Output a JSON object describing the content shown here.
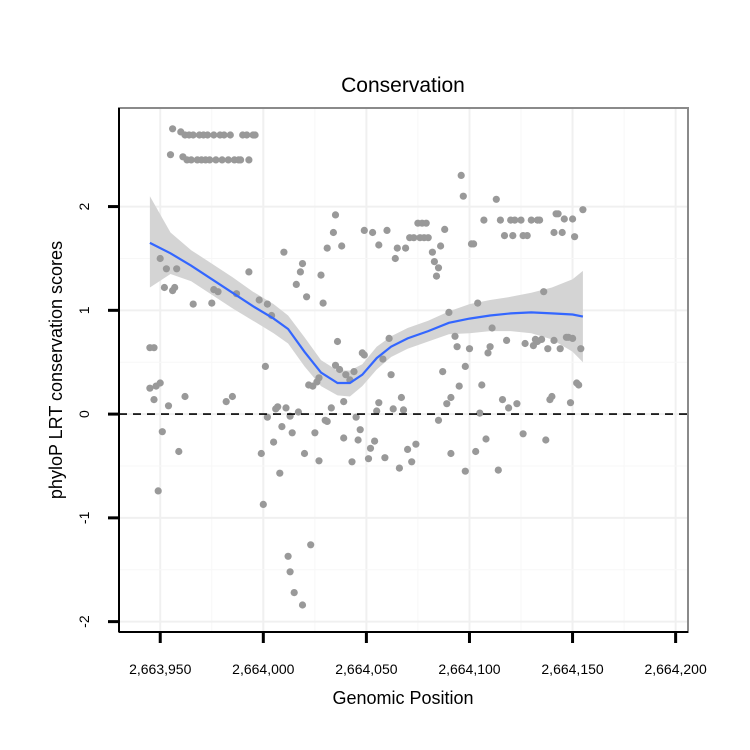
{
  "chart_data": {
    "type": "scatter",
    "title": "Conservation",
    "xlabel": "Genomic Position",
    "ylabel": "phyloP LRT conservation scores",
    "xlim": [
      2663930,
      2664206
    ],
    "ylim": [
      -2.1,
      2.95
    ],
    "x_ticks": [
      2663950,
      2664000,
      2664050,
      2664100,
      2664150,
      2664200
    ],
    "x_tick_labels": [
      "2,663,950",
      "2,664,000",
      "2,664,050",
      "2,664,100",
      "2,664,150",
      "2,664,200"
    ],
    "y_ticks": [
      -2,
      -1,
      0,
      1,
      2
    ],
    "y_tick_labels": [
      "-2",
      "-1",
      "0",
      "1",
      "2"
    ],
    "grid": true,
    "reference_line": {
      "y": 0,
      "style": "dashed"
    },
    "colors": {
      "points": "#999999",
      "smooth": "#3366ff",
      "band": "#d4d4d4",
      "panel_border": "#8a8a8a"
    },
    "points": [
      [
        2663945,
        0.64
      ],
      [
        2663947,
        0.64
      ],
      [
        2663945,
        0.25
      ],
      [
        2663947,
        0.14
      ],
      [
        2663948,
        0.27
      ],
      [
        2663950,
        0.3
      ],
      [
        2663949,
        -0.74
      ],
      [
        2663950,
        1.5
      ],
      [
        2663951,
        -0.17
      ],
      [
        2663952,
        1.22
      ],
      [
        2663953,
        1.4
      ],
      [
        2663954,
        0.08
      ],
      [
        2663955,
        2.5
      ],
      [
        2663956,
        2.75
      ],
      [
        2663956,
        1.19
      ],
      [
        2663957,
        1.22
      ],
      [
        2663958,
        1.4
      ],
      [
        2663959,
        -0.36
      ],
      [
        2663960,
        2.72
      ],
      [
        2663961,
        2.48
      ],
      [
        2663962,
        0.17
      ],
      [
        2663962,
        2.69
      ],
      [
        2663963,
        2.45
      ],
      [
        2663964,
        2.69
      ],
      [
        2663965,
        2.45
      ],
      [
        2663966,
        1.06
      ],
      [
        2663966,
        2.69
      ],
      [
        2663968,
        2.45
      ],
      [
        2663969,
        2.69
      ],
      [
        2663970,
        2.45
      ],
      [
        2663971,
        2.69
      ],
      [
        2663972,
        2.45
      ],
      [
        2663973,
        2.69
      ],
      [
        2663974,
        2.45
      ],
      [
        2663975,
        1.07
      ],
      [
        2663976,
        1.2
      ],
      [
        2663976,
        2.69
      ],
      [
        2663977,
        2.45
      ],
      [
        2663978,
        1.18
      ],
      [
        2663979,
        2.69
      ],
      [
        2663980,
        2.45
      ],
      [
        2663981,
        2.69
      ],
      [
        2663982,
        0.12
      ],
      [
        2663983,
        2.45
      ],
      [
        2663984,
        2.69
      ],
      [
        2663985,
        0.17
      ],
      [
        2663986,
        2.45
      ],
      [
        2663987,
        1.16
      ],
      [
        2663988,
        2.45
      ],
      [
        2663989,
        2.45
      ],
      [
        2663990,
        2.69
      ],
      [
        2663992,
        2.69
      ],
      [
        2663993,
        2.45
      ],
      [
        2663995,
        2.69
      ],
      [
        2663993,
        1.37
      ],
      [
        2663996,
        2.69
      ],
      [
        2663998,
        1.1
      ],
      [
        2663999,
        -0.38
      ],
      [
        2664000,
        -0.87
      ],
      [
        2664001,
        0.46
      ],
      [
        2664002,
        -0.03
      ],
      [
        2664002,
        1.06
      ],
      [
        2664004,
        0.95
      ],
      [
        2664005,
        -0.27
      ],
      [
        2664006,
        0.05
      ],
      [
        2664007,
        0.07
      ],
      [
        2664008,
        -0.57
      ],
      [
        2664009,
        -0.12
      ],
      [
        2664010,
        1.56
      ],
      [
        2664011,
        0.06
      ],
      [
        2664012,
        -1.37
      ],
      [
        2664013,
        -0.02
      ],
      [
        2664013,
        -1.52
      ],
      [
        2664014,
        -0.18
      ],
      [
        2664015,
        -1.72
      ],
      [
        2664016,
        1.25
      ],
      [
        2664017,
        0.02
      ],
      [
        2664018,
        1.37
      ],
      [
        2664019,
        1.45
      ],
      [
        2664019,
        -1.84
      ],
      [
        2664020,
        -0.38
      ],
      [
        2664021,
        1.13
      ],
      [
        2664022,
        0.28
      ],
      [
        2664023,
        -1.26
      ],
      [
        2664024,
        0.27
      ],
      [
        2664025,
        -0.18
      ],
      [
        2664026,
        0.31
      ],
      [
        2664027,
        0.35
      ],
      [
        2664027,
        -0.45
      ],
      [
        2664028,
        1.34
      ],
      [
        2664029,
        1.07
      ],
      [
        2664030,
        -0.06
      ],
      [
        2664031,
        -0.07
      ],
      [
        2664031,
        1.6
      ],
      [
        2664033,
        0.06
      ],
      [
        2664034,
        1.75
      ],
      [
        2664035,
        0.47
      ],
      [
        2664035,
        1.92
      ],
      [
        2664036,
        0.7
      ],
      [
        2664037,
        0.43
      ],
      [
        2664038,
        1.62
      ],
      [
        2664039,
        -0.23
      ],
      [
        2664039,
        0.12
      ],
      [
        2664040,
        0.38
      ],
      [
        2664042,
        0.33
      ],
      [
        2664043,
        -0.46
      ],
      [
        2664044,
        0.41
      ],
      [
        2664045,
        -0.03
      ],
      [
        2664046,
        -0.25
      ],
      [
        2664047,
        -0.15
      ],
      [
        2664048,
        0.59
      ],
      [
        2664049,
        0.57
      ],
      [
        2664049,
        1.77
      ],
      [
        2664051,
        -0.43
      ],
      [
        2664052,
        -0.33
      ],
      [
        2664053,
        1.75
      ],
      [
        2664054,
        -0.26
      ],
      [
        2664055,
        0.03
      ],
      [
        2664056,
        0.11
      ],
      [
        2664056,
        1.63
      ],
      [
        2664058,
        0.53
      ],
      [
        2664059,
        -0.42
      ],
      [
        2664060,
        1.77
      ],
      [
        2664061,
        0.73
      ],
      [
        2664062,
        0.38
      ],
      [
        2664063,
        0.05
      ],
      [
        2664064,
        1.5
      ],
      [
        2664065,
        1.6
      ],
      [
        2664066,
        -0.52
      ],
      [
        2664067,
        0.16
      ],
      [
        2664068,
        0.04
      ],
      [
        2664069,
        1.6
      ],
      [
        2664070,
        -0.34
      ],
      [
        2664071,
        1.7
      ],
      [
        2664072,
        -0.46
      ],
      [
        2664073,
        1.7
      ],
      [
        2664074,
        -0.29
      ],
      [
        2664075,
        1.84
      ],
      [
        2664076,
        1.7
      ],
      [
        2664077,
        1.84
      ],
      [
        2664078,
        1.7
      ],
      [
        2664079,
        1.84
      ],
      [
        2664080,
        1.7
      ],
      [
        2664082,
        1.56
      ],
      [
        2664083,
        1.47
      ],
      [
        2664084,
        1.33
      ],
      [
        2664085,
        1.41
      ],
      [
        2664086,
        1.62
      ],
      [
        2664085,
        -0.06
      ],
      [
        2664087,
        0.41
      ],
      [
        2664088,
        1.78
      ],
      [
        2664089,
        0.1
      ],
      [
        2664090,
        0.98
      ],
      [
        2664091,
        0.16
      ],
      [
        2664091,
        -0.38
      ],
      [
        2664093,
        0.75
      ],
      [
        2664094,
        0.65
      ],
      [
        2664095,
        0.27
      ],
      [
        2664096,
        2.3
      ],
      [
        2664097,
        2.1
      ],
      [
        2664098,
        0.46
      ],
      [
        2664098,
        -0.55
      ],
      [
        2664100,
        0.63
      ],
      [
        2664101,
        1.64
      ],
      [
        2664102,
        1.64
      ],
      [
        2664103,
        -0.36
      ],
      [
        2664104,
        1.07
      ],
      [
        2664105,
        0.01
      ],
      [
        2664106,
        0.28
      ],
      [
        2664107,
        1.87
      ],
      [
        2664108,
        -0.24
      ],
      [
        2664109,
        0.59
      ],
      [
        2664110,
        0.65
      ],
      [
        2664111,
        0.83
      ],
      [
        2664113,
        2.07
      ],
      [
        2664114,
        -0.54
      ],
      [
        2664115,
        1.87
      ],
      [
        2664116,
        0.14
      ],
      [
        2664117,
        1.72
      ],
      [
        2664118,
        0.71
      ],
      [
        2664119,
        0.06
      ],
      [
        2664120,
        1.87
      ],
      [
        2664121,
        1.72
      ],
      [
        2664122,
        1.87
      ],
      [
        2664123,
        0.1
      ],
      [
        2664125,
        1.87
      ],
      [
        2664126,
        -0.19
      ],
      [
        2664127,
        0.68
      ],
      [
        2664128,
        1.72
      ],
      [
        2664130,
        1.87
      ],
      [
        2664131,
        0.66
      ],
      [
        2664132,
        0.72
      ],
      [
        2664133,
        1.87
      ],
      [
        2664134,
        1.87
      ],
      [
        2664135,
        0.72
      ],
      [
        2664136,
        1.18
      ],
      [
        2664137,
        -0.25
      ],
      [
        2664138,
        0.63
      ],
      [
        2664139,
        0.14
      ],
      [
        2664140,
        0.17
      ],
      [
        2664141,
        0.71
      ],
      [
        2664142,
        1.93
      ],
      [
        2664143,
        1.93
      ],
      [
        2664144,
        0.63
      ],
      [
        2664145,
        1.75
      ],
      [
        2664146,
        1.88
      ],
      [
        2664147,
        0.74
      ],
      [
        2664148,
        0.74
      ],
      [
        2664149,
        0.11
      ],
      [
        2664150,
        1.88
      ],
      [
        2664151,
        1.71
      ],
      [
        2664152,
        0.3
      ],
      [
        2664153,
        0.28
      ],
      [
        2664154,
        0.63
      ],
      [
        2664155,
        1.97
      ],
      [
        2664150,
        0.73
      ],
      [
        2664141,
        1.75
      ],
      [
        2664133,
        0.7
      ],
      [
        2664126,
        1.72
      ]
    ],
    "smooth": [
      [
        2663945,
        1.65
      ],
      [
        2663955,
        1.55
      ],
      [
        2663965,
        1.43
      ],
      [
        2663975,
        1.3
      ],
      [
        2663985,
        1.17
      ],
      [
        2663995,
        1.04
      ],
      [
        2664005,
        0.92
      ],
      [
        2664012,
        0.82
      ],
      [
        2664020,
        0.6
      ],
      [
        2664028,
        0.4
      ],
      [
        2664036,
        0.3
      ],
      [
        2664042,
        0.3
      ],
      [
        2664048,
        0.38
      ],
      [
        2664055,
        0.54
      ],
      [
        2664062,
        0.65
      ],
      [
        2664070,
        0.73
      ],
      [
        2664080,
        0.8
      ],
      [
        2664090,
        0.88
      ],
      [
        2664100,
        0.92
      ],
      [
        2664110,
        0.95
      ],
      [
        2664120,
        0.97
      ],
      [
        2664130,
        0.98
      ],
      [
        2664140,
        0.97
      ],
      [
        2664150,
        0.96
      ],
      [
        2664155,
        0.94
      ]
    ],
    "band_upper": [
      [
        2663945,
        2.1
      ],
      [
        2663955,
        1.75
      ],
      [
        2663965,
        1.58
      ],
      [
        2663975,
        1.45
      ],
      [
        2663985,
        1.32
      ],
      [
        2663995,
        1.18
      ],
      [
        2664005,
        1.06
      ],
      [
        2664012,
        0.95
      ],
      [
        2664020,
        0.74
      ],
      [
        2664028,
        0.52
      ],
      [
        2664036,
        0.42
      ],
      [
        2664042,
        0.42
      ],
      [
        2664048,
        0.48
      ],
      [
        2664055,
        0.65
      ],
      [
        2664062,
        0.75
      ],
      [
        2664070,
        0.83
      ],
      [
        2664080,
        0.9
      ],
      [
        2664090,
        0.99
      ],
      [
        2664100,
        1.06
      ],
      [
        2664110,
        1.1
      ],
      [
        2664120,
        1.13
      ],
      [
        2664130,
        1.17
      ],
      [
        2664140,
        1.22
      ],
      [
        2664150,
        1.3
      ],
      [
        2664155,
        1.38
      ]
    ],
    "band_lower": [
      [
        2663945,
        1.22
      ],
      [
        2663955,
        1.35
      ],
      [
        2663965,
        1.28
      ],
      [
        2663975,
        1.15
      ],
      [
        2663985,
        1.02
      ],
      [
        2663995,
        0.9
      ],
      [
        2664005,
        0.78
      ],
      [
        2664012,
        0.68
      ],
      [
        2664020,
        0.46
      ],
      [
        2664028,
        0.27
      ],
      [
        2664036,
        0.18
      ],
      [
        2664042,
        0.17
      ],
      [
        2664048,
        0.27
      ],
      [
        2664055,
        0.43
      ],
      [
        2664062,
        0.55
      ],
      [
        2664070,
        0.63
      ],
      [
        2664080,
        0.7
      ],
      [
        2664090,
        0.77
      ],
      [
        2664100,
        0.78
      ],
      [
        2664110,
        0.8
      ],
      [
        2664120,
        0.8
      ],
      [
        2664130,
        0.78
      ],
      [
        2664140,
        0.72
      ],
      [
        2664150,
        0.6
      ],
      [
        2664155,
        0.5
      ]
    ]
  }
}
